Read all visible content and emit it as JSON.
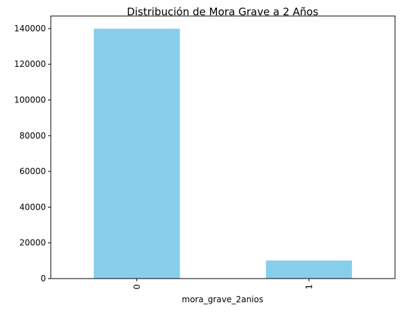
{
  "chart_data": {
    "type": "bar",
    "title": "Distribución de Mora Grave a 2 Años",
    "xlabel": "mora_grave_2anios",
    "ylabel": "",
    "categories": [
      "0",
      "1"
    ],
    "values": [
      139900,
      10100
    ],
    "ylim": [
      0,
      147000
    ],
    "yticks": [
      0,
      20000,
      40000,
      60000,
      80000,
      100000,
      120000,
      140000
    ],
    "ytick_labels": [
      "0",
      "20000",
      "40000",
      "60000",
      "80000",
      "100000",
      "120000",
      "140000"
    ],
    "bar_color": "#87ceeb",
    "grid": false,
    "legend": "none",
    "xtick_rotation": "vertical"
  }
}
